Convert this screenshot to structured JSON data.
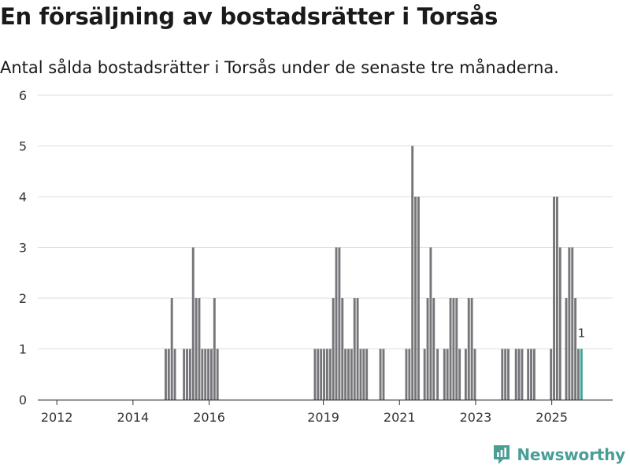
{
  "header": {
    "title": "En försäljning av bostadsrätter i Torsås",
    "subtitle": "Antal sålda bostadsrätter i Torsås under de senaste tre månaderna."
  },
  "brand": {
    "name": "Newsworthy",
    "color": "#4a9e97"
  },
  "colors": {
    "bar": "#75757a",
    "highlight": "#3aa49c",
    "grid": "#dddddd",
    "axis": "#333333"
  },
  "chart_data": {
    "type": "bar",
    "title": "En försäljning av bostadsrätter i Torsås",
    "subtitle": "Antal sålda bostadsrätter i Torsås under de senaste tre månaderna.",
    "xlabel": "",
    "ylabel": "",
    "ylim": [
      0,
      6
    ],
    "yticks": [
      0,
      1,
      2,
      3,
      4,
      5,
      6
    ],
    "xlim": [
      2011.5,
      2026.6
    ],
    "xticks": [
      2012,
      2014,
      2016,
      2019,
      2021,
      2023,
      2025
    ],
    "bar_width_years": 0.06,
    "grid": true,
    "legend": "none",
    "highlight_label": "1",
    "x": [
      2014.86,
      2014.94,
      2015.02,
      2015.1,
      2015.34,
      2015.42,
      2015.5,
      2015.58,
      2015.66,
      2015.74,
      2015.82,
      2015.9,
      2015.98,
      2016.06,
      2016.14,
      2016.22,
      2018.78,
      2018.86,
      2018.94,
      2019.02,
      2019.1,
      2019.18,
      2019.26,
      2019.34,
      2019.42,
      2019.5,
      2019.58,
      2019.66,
      2019.74,
      2019.82,
      2019.9,
      2019.98,
      2020.06,
      2020.14,
      2020.5,
      2020.58,
      2021.18,
      2021.26,
      2021.34,
      2021.42,
      2021.5,
      2021.66,
      2021.74,
      2021.82,
      2021.9,
      2022.0,
      2022.18,
      2022.26,
      2022.34,
      2022.42,
      2022.5,
      2022.58,
      2022.74,
      2022.82,
      2022.9,
      2022.98,
      2023.7,
      2023.78,
      2023.86,
      2024.06,
      2024.14,
      2024.22,
      2024.38,
      2024.46,
      2024.54,
      2024.98,
      2025.06,
      2025.14,
      2025.22,
      2025.38,
      2025.46,
      2025.54,
      2025.62,
      2025.7,
      2025.78
    ],
    "values": [
      1,
      1,
      2,
      1,
      1,
      1,
      1,
      3,
      2,
      2,
      1,
      1,
      1,
      1,
      2,
      1,
      1,
      1,
      1,
      1,
      1,
      1,
      2,
      3,
      3,
      2,
      1,
      1,
      1,
      2,
      2,
      1,
      1,
      1,
      1,
      1,
      1,
      1,
      5,
      4,
      4,
      1,
      2,
      3,
      2,
      1,
      1,
      1,
      2,
      2,
      2,
      1,
      1,
      2,
      2,
      1,
      1,
      1,
      1,
      1,
      1,
      1,
      1,
      1,
      1,
      1,
      4,
      4,
      3,
      2,
      3,
      3,
      2,
      1,
      1
    ],
    "highlight_index": 74
  }
}
